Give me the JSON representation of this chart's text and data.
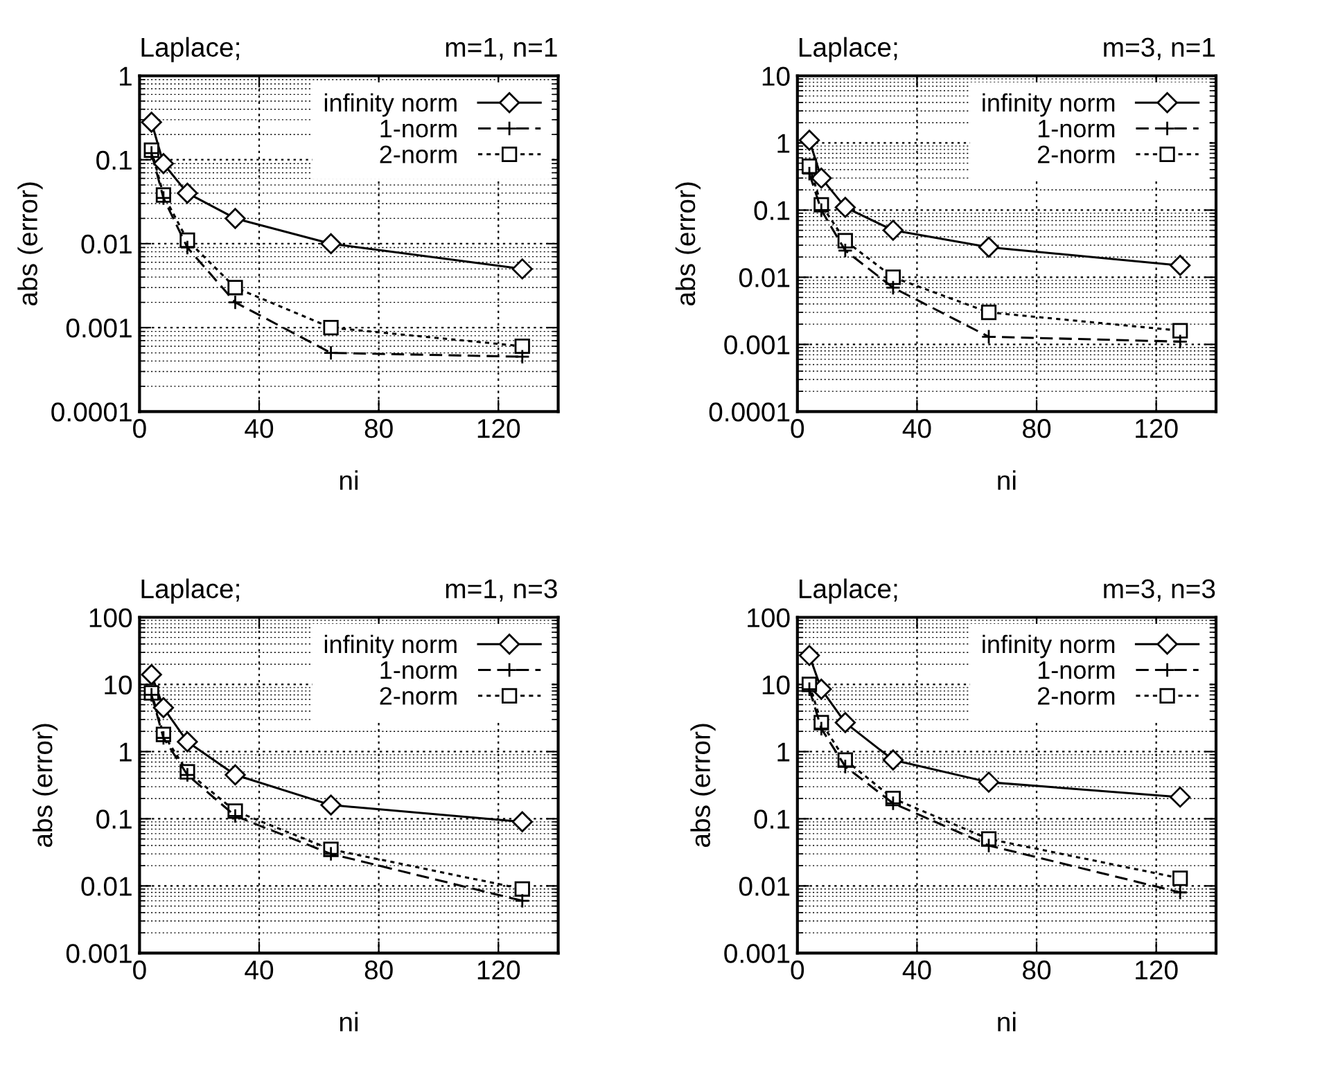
{
  "chart_data": [
    {
      "type": "line",
      "title": "Laplace;",
      "subtitle": "m=1, n=1",
      "xlabel": "ni",
      "ylabel": "abs (error)",
      "log": "y",
      "xlim": [
        0,
        140
      ],
      "ylim": [
        0.0001,
        1
      ],
      "xticks": [
        0,
        40,
        80,
        120
      ],
      "yticks": [
        0.0001,
        0.001,
        0.01,
        0.1,
        1
      ],
      "grid": true,
      "legend": "top right",
      "x": [
        4,
        8,
        16,
        32,
        64,
        128
      ],
      "series": [
        {
          "name": "infinity norm",
          "color": "#000000",
          "marker": "diamond",
          "line_style": "solid",
          "values": [
            0.28,
            0.09,
            0.04,
            0.02,
            0.01,
            0.005
          ]
        },
        {
          "name": "1-norm",
          "color": "#000000",
          "marker": "cross",
          "line_style": "dashed",
          "values": [
            0.12,
            0.035,
            0.009,
            0.002,
            0.0005,
            0.00045
          ]
        },
        {
          "name": "2-norm",
          "color": "#000000",
          "marker": "square",
          "line_style": "dotted",
          "values": [
            0.13,
            0.038,
            0.011,
            0.003,
            0.001,
            0.0006
          ]
        }
      ]
    },
    {
      "type": "line",
      "title": "Laplace;",
      "subtitle": "m=3, n=1",
      "xlabel": "ni",
      "ylabel": "abs (error)",
      "log": "y",
      "xlim": [
        0,
        140
      ],
      "ylim": [
        0.0001,
        10
      ],
      "xticks": [
        0,
        40,
        80,
        120
      ],
      "yticks": [
        0.0001,
        0.001,
        0.01,
        0.1,
        1,
        10
      ],
      "grid": true,
      "legend": "top right",
      "x": [
        4,
        8,
        16,
        32,
        64,
        128
      ],
      "series": [
        {
          "name": "infinity norm",
          "color": "#000000",
          "marker": "diamond",
          "line_style": "solid",
          "values": [
            1.1,
            0.3,
            0.11,
            0.05,
            0.028,
            0.015
          ]
        },
        {
          "name": "1-norm",
          "color": "#000000",
          "marker": "cross",
          "line_style": "dashed",
          "values": [
            0.35,
            0.1,
            0.025,
            0.007,
            0.0013,
            0.0011
          ]
        },
        {
          "name": "2-norm",
          "color": "#000000",
          "marker": "square",
          "line_style": "dotted",
          "values": [
            0.45,
            0.12,
            0.035,
            0.01,
            0.003,
            0.0016
          ]
        }
      ]
    },
    {
      "type": "line",
      "title": "Laplace;",
      "subtitle": "m=1, n=3",
      "xlabel": "ni",
      "ylabel": "abs (error)",
      "log": "y",
      "xlim": [
        0,
        140
      ],
      "ylim": [
        0.001,
        100
      ],
      "xticks": [
        0,
        40,
        80,
        120
      ],
      "yticks": [
        0.001,
        0.01,
        0.1,
        1,
        10,
        100
      ],
      "grid": true,
      "legend": "top right",
      "x": [
        4,
        8,
        16,
        32,
        64,
        128
      ],
      "series": [
        {
          "name": "infinity norm",
          "color": "#000000",
          "marker": "diamond",
          "line_style": "solid",
          "values": [
            14,
            4.5,
            1.4,
            0.45,
            0.16,
            0.09
          ]
        },
        {
          "name": "1-norm",
          "color": "#000000",
          "marker": "cross",
          "line_style": "dashed",
          "values": [
            7,
            1.6,
            0.45,
            0.11,
            0.03,
            0.006
          ]
        },
        {
          "name": "2-norm",
          "color": "#000000",
          "marker": "square",
          "line_style": "dotted",
          "values": [
            7.5,
            1.8,
            0.5,
            0.13,
            0.035,
            0.009
          ]
        }
      ]
    },
    {
      "type": "line",
      "title": "Laplace;",
      "subtitle": "m=3, n=3",
      "xlabel": "ni",
      "ylabel": "abs (error)",
      "log": "y",
      "xlim": [
        0,
        140
      ],
      "ylim": [
        0.001,
        100
      ],
      "xticks": [
        0,
        40,
        80,
        120
      ],
      "yticks": [
        0.001,
        0.01,
        0.1,
        1,
        10,
        100
      ],
      "grid": true,
      "legend": "top right",
      "x": [
        4,
        8,
        16,
        32,
        64,
        128
      ],
      "series": [
        {
          "name": "infinity norm",
          "color": "#000000",
          "marker": "diamond",
          "line_style": "solid",
          "values": [
            27,
            8.5,
            2.7,
            0.75,
            0.35,
            0.21
          ]
        },
        {
          "name": "1-norm",
          "color": "#000000",
          "marker": "cross",
          "line_style": "dashed",
          "values": [
            8.5,
            2.2,
            0.6,
            0.17,
            0.04,
            0.008
          ]
        },
        {
          "name": "2-norm",
          "color": "#000000",
          "marker": "square",
          "line_style": "dotted",
          "values": [
            10,
            2.7,
            0.75,
            0.2,
            0.05,
            0.013
          ]
        }
      ]
    }
  ]
}
